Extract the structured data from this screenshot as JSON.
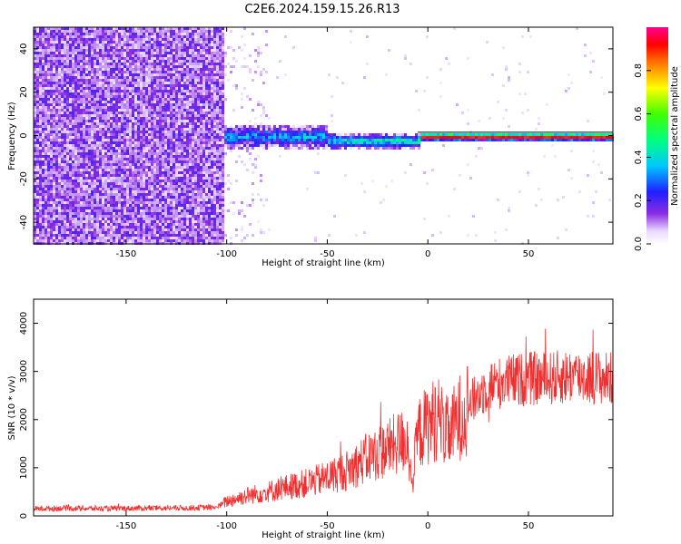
{
  "title": "C2E6.2024.159.15.26.R13",
  "colors": {
    "snr_line": "#f03030",
    "spec_axis_bg": "#ffffff",
    "frame": "#000000"
  },
  "chart_data": [
    {
      "type": "heatmap",
      "name_hint": "spectrogram",
      "title": "",
      "xlabel": "Height of straight line (km)",
      "ylabel": "Frequency (Hz)",
      "xlim": [
        -196,
        92
      ],
      "ylim": [
        -50,
        50
      ],
      "xticks": [
        -150,
        -100,
        -50,
        0,
        50
      ],
      "yticks": [
        -40,
        -20,
        0,
        20,
        40
      ],
      "colorbar": {
        "label": "Normalized spectral amplitude",
        "range": [
          0,
          1
        ],
        "ticks": [
          "0.0",
          "0.2",
          "0.4",
          "0.6",
          "0.8"
        ],
        "tick_values": [
          0.0,
          0.2,
          0.4,
          0.6,
          0.8
        ],
        "colormap": "rainbow (white→violet→blue→cyan→green→yellow→red→magenta)"
      },
      "regions": [
        {
          "x": [
            -196,
            -102
          ],
          "description": "broadband noise, amplitude ~0.1-0.3 across all frequencies"
        },
        {
          "x": [
            -102,
            -50
          ],
          "freq_center": 0,
          "freq_halfwidth": 6,
          "amplitude": 0.35
        },
        {
          "x": [
            -50,
            -5
          ],
          "freq_center": -2,
          "freq_halfwidth": 4,
          "amplitude": 0.45
        },
        {
          "x": [
            -5,
            92
          ],
          "freq_center": 0,
          "freq_halfwidth": 2,
          "amplitude": 0.9
        }
      ]
    },
    {
      "type": "line",
      "name_hint": "snr",
      "title": "",
      "xlabel": "Height of straight line (km)",
      "ylabel": "SNR (10 * v/v)",
      "xlim": [
        -196,
        92
      ],
      "ylim": [
        0,
        4500
      ],
      "xticks": [
        -150,
        -100,
        -50,
        0,
        50
      ],
      "yticks": [
        0,
        1000,
        2000,
        3000,
        4000
      ],
      "grid": false,
      "series": [
        {
          "x": [
            -195,
            -180,
            -160,
            -140,
            -120,
            -105,
            -100,
            -90,
            -80,
            -70,
            -60,
            -50,
            -40,
            -30,
            -20,
            -10,
            -8,
            -5,
            0,
            5,
            10,
            15,
            20,
            25,
            30,
            40,
            50,
            60,
            70,
            80,
            90
          ],
          "y": [
            150,
            160,
            150,
            160,
            165,
            180,
            300,
            420,
            500,
            600,
            680,
            800,
            950,
            1200,
            1400,
            1600,
            600,
            1700,
            1900,
            2050,
            1700,
            2000,
            2300,
            2500,
            2700,
            2800,
            2850,
            2850,
            2900,
            2900,
            2850
          ]
        }
      ]
    }
  ]
}
